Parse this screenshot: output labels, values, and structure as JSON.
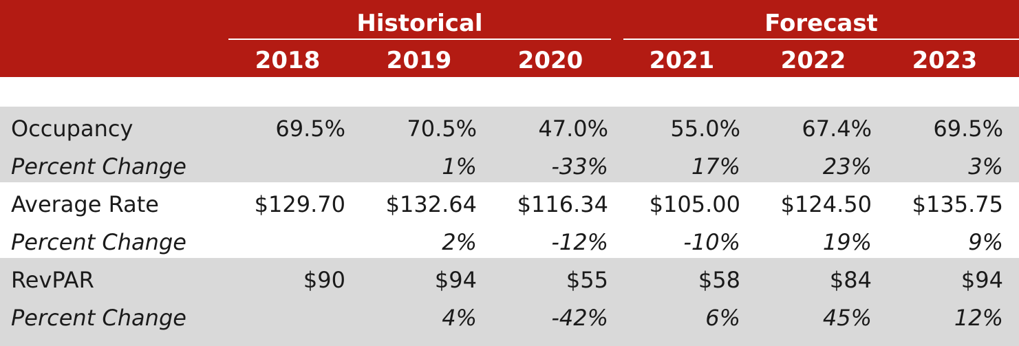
{
  "header": {
    "group_historical": "Historical",
    "group_forecast": "Forecast",
    "years": [
      "2018",
      "2019",
      "2020",
      "2021",
      "2022",
      "2023"
    ]
  },
  "rows": [
    {
      "label": "Occupancy",
      "values": [
        "69.5%",
        "70.5%",
        "47.0%",
        "55.0%",
        "67.4%",
        "69.5%"
      ]
    },
    {
      "label": "Percent Change",
      "values": [
        "",
        "1%",
        "-33%",
        "17%",
        "23%",
        "3%"
      ]
    },
    {
      "label": "Average Rate",
      "values": [
        "$129.70",
        "$132.64",
        "$116.34",
        "$105.00",
        "$124.50",
        "$135.75"
      ]
    },
    {
      "label": "Percent Change",
      "values": [
        "",
        "2%",
        "-12%",
        "-10%",
        "19%",
        "9%"
      ]
    },
    {
      "label": "RevPAR",
      "values": [
        "$90",
        "$94",
        "$55",
        "$58",
        "$84",
        "$94"
      ]
    },
    {
      "label": "Percent Change",
      "values": [
        "",
        "4%",
        "-42%",
        "6%",
        "45%",
        "12%"
      ]
    }
  ],
  "colors": {
    "header_bg": "#b31b13",
    "header_text": "#ffffff",
    "band_grey": "#d9d9d9",
    "band_white": "#ffffff"
  }
}
